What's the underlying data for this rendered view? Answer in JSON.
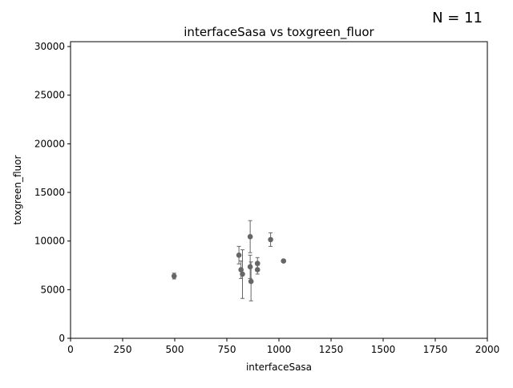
{
  "annotation": "N = 11",
  "colors": {
    "marker": "#666666",
    "axis": "#000000",
    "background": "#ffffff"
  },
  "chart_data": {
    "type": "scatter",
    "title": "interfaceSasa vs toxgreen_fluor",
    "xlabel": "interfaceSasa",
    "ylabel": "toxgreen_fluor",
    "xlim": [
      0,
      2000
    ],
    "ylim": [
      0,
      30500
    ],
    "xticks": [
      0,
      250,
      500,
      750,
      1000,
      1250,
      1500,
      1750,
      2000
    ],
    "yticks": [
      0,
      5000,
      10000,
      15000,
      20000,
      25000,
      30000
    ],
    "grid": false,
    "points": [
      {
        "x": 497,
        "y": 6400,
        "err": 300
      },
      {
        "x": 808,
        "y": 8550,
        "err": 900
      },
      {
        "x": 818,
        "y": 7050,
        "err": 900
      },
      {
        "x": 825,
        "y": 6600,
        "err": 2500
      },
      {
        "x": 862,
        "y": 10450,
        "err": 1650
      },
      {
        "x": 862,
        "y": 7350,
        "err": 1200
      },
      {
        "x": 866,
        "y": 5850,
        "err": 2000
      },
      {
        "x": 897,
        "y": 7700,
        "err": 600
      },
      {
        "x": 897,
        "y": 7050,
        "err": 450
      },
      {
        "x": 960,
        "y": 10150,
        "err": 700
      },
      {
        "x": 1022,
        "y": 7950,
        "err": 150
      }
    ]
  }
}
